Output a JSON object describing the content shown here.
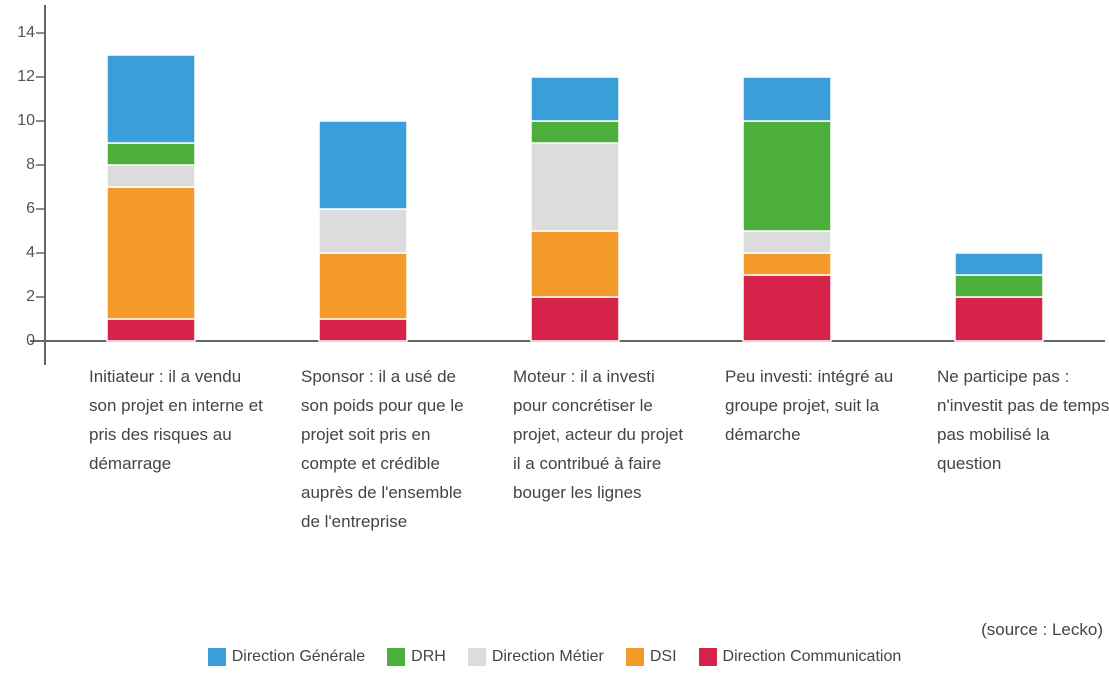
{
  "chart_data": {
    "type": "stacked_bar",
    "categories": [
      "Initiateur : il a vendu son projet en interne et pris des risques au démarrage",
      "Sponsor : il a usé de son poids pour que le projet soit pris en compte et crédible auprès de l'ensemble de l'entreprise",
      "Moteur : il a investi pour concrétiser le projet, acteur du projet il a contribué à faire bouger les lignes",
      "Peu investi: intégré au groupe projet, suit la démarche",
      "Ne participe pas : n'investit pas de temps, pas mobilisé la question"
    ],
    "series": [
      {
        "name": "Direction Générale",
        "color": "#3a9fd8",
        "values": [
          4,
          4,
          2,
          2,
          1
        ]
      },
      {
        "name": "DRH",
        "color": "#4caf3c",
        "values": [
          1,
          0,
          1,
          5,
          1
        ]
      },
      {
        "name": "Direction Métier",
        "color": "#dcdcdc",
        "values": [
          1,
          2,
          4,
          1,
          0
        ]
      },
      {
        "name": "DSI",
        "color": "#f39a2b",
        "values": [
          6,
          3,
          3,
          1,
          0
        ]
      },
      {
        "name": "Direction Communication",
        "color": "#d6234a",
        "values": [
          1,
          1,
          2,
          3,
          2
        ]
      }
    ],
    "ylim": [
      0,
      14
    ],
    "yticks": [
      0,
      2,
      4,
      6,
      8,
      10,
      12,
      14
    ],
    "source": "(source : Lecko)"
  }
}
